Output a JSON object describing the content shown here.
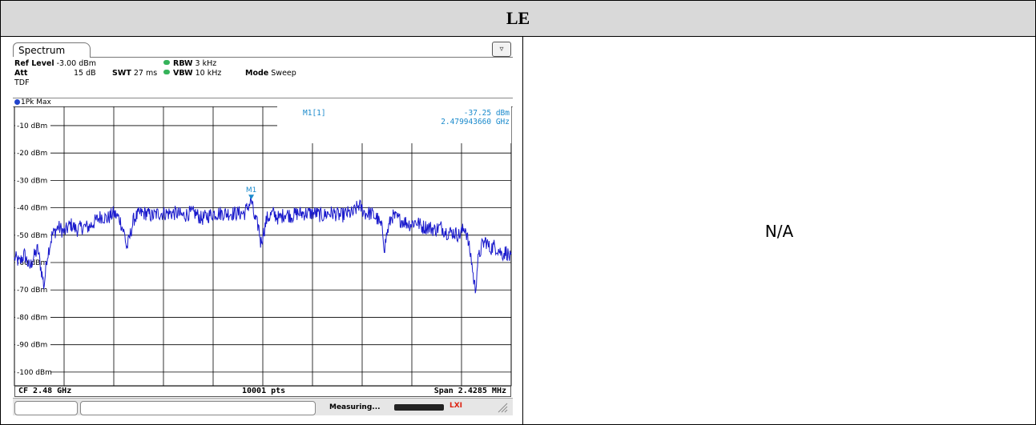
{
  "header": {
    "title": "LE"
  },
  "right_cell": {
    "text": "N/A"
  },
  "analyzer": {
    "tab_label": "Spectrum",
    "ref_level_label": "Ref Level",
    "ref_level_value": "-3.00 dBm",
    "att_label": "Att",
    "att_value": "15 dB",
    "swt_label": "SWT",
    "swt_value": "27 ms",
    "rbw_label": "RBW",
    "rbw_value": "3 kHz",
    "vbw_label": "VBW",
    "vbw_value": "10 kHz",
    "mode_label": "Mode",
    "mode_value": "Sweep",
    "tdf_label": "TDF",
    "trace_label": "1Pk Max",
    "marker_name": "M1",
    "marker_readout_label": "M1[1]",
    "marker_level": "-37.25 dBm",
    "marker_freq": "2.479943660 GHz",
    "cf_label": "CF 2.48 GHz",
    "pts_label": "10001 pts",
    "span_label": "Span 2.4285 MHz",
    "status_text": "Measuring...",
    "lxi_label": "LXI"
  },
  "colors": {
    "trace": "#1a1acc",
    "marker": "#1a8acc",
    "grid": "#000000"
  },
  "chart_data": {
    "type": "line",
    "title": "",
    "xlabel": "",
    "ylabel": "",
    "x_range_mhz": [
      2478.78575,
      2481.21425
    ],
    "ylim": [
      -105,
      -3
    ],
    "yticks": [
      -10,
      -20,
      -30,
      -40,
      -50,
      -60,
      -70,
      -80,
      -90,
      -100
    ],
    "ytick_labels": [
      "-10 dBm",
      "-20 dBm",
      "-30 dBm",
      "-40 dBm",
      "-50 dBm",
      "-60 dBm",
      "-70 dBm",
      "-80 dBm",
      "-90 dBm",
      "-100 dBm"
    ],
    "x_divisions": 10,
    "grid": true,
    "marker": {
      "name": "M1",
      "x_mhz": 2479.94366,
      "y_dbm": -37.25
    },
    "series": [
      {
        "points": [
          [
            2478.786,
            -58
          ],
          [
            2478.81,
            -60
          ],
          [
            2478.835,
            -57
          ],
          [
            2478.86,
            -62
          ],
          [
            2478.88,
            -58
          ],
          [
            2478.9,
            -55
          ],
          [
            2478.915,
            -62
          ],
          [
            2478.925,
            -66
          ],
          [
            2478.93,
            -69
          ],
          [
            2478.945,
            -58
          ],
          [
            2478.97,
            -50
          ],
          [
            2479.0,
            -47
          ],
          [
            2479.03,
            -49
          ],
          [
            2479.06,
            -46
          ],
          [
            2479.09,
            -48
          ],
          [
            2479.12,
            -47
          ],
          [
            2479.15,
            -47
          ],
          [
            2479.18,
            -45
          ],
          [
            2479.21,
            -43
          ],
          [
            2479.24,
            -44
          ],
          [
            2479.27,
            -42
          ],
          [
            2479.3,
            -44
          ],
          [
            2479.325,
            -50
          ],
          [
            2479.335,
            -55
          ],
          [
            2479.345,
            -52
          ],
          [
            2479.37,
            -44
          ],
          [
            2479.4,
            -42
          ],
          [
            2479.43,
            -42
          ],
          [
            2479.46,
            -43
          ],
          [
            2479.49,
            -42
          ],
          [
            2479.52,
            -42
          ],
          [
            2479.55,
            -42
          ],
          [
            2479.58,
            -42
          ],
          [
            2479.61,
            -43
          ],
          [
            2479.64,
            -42
          ],
          [
            2479.67,
            -42
          ],
          [
            2479.7,
            -44
          ],
          [
            2479.73,
            -43
          ],
          [
            2479.76,
            -42
          ],
          [
            2479.79,
            -42
          ],
          [
            2479.82,
            -42
          ],
          [
            2479.85,
            -42
          ],
          [
            2479.88,
            -42
          ],
          [
            2479.91,
            -42
          ],
          [
            2479.94366,
            -37.25
          ],
          [
            2479.96,
            -44
          ],
          [
            2479.98,
            -47
          ],
          [
            2479.99,
            -53
          ],
          [
            2480.0,
            -50
          ],
          [
            2480.02,
            -44
          ],
          [
            2480.05,
            -42
          ],
          [
            2480.08,
            -44
          ],
          [
            2480.11,
            -42
          ],
          [
            2480.14,
            -43
          ],
          [
            2480.17,
            -42
          ],
          [
            2480.2,
            -42
          ],
          [
            2480.23,
            -42
          ],
          [
            2480.26,
            -42
          ],
          [
            2480.29,
            -43
          ],
          [
            2480.32,
            -42
          ],
          [
            2480.35,
            -42
          ],
          [
            2480.38,
            -43
          ],
          [
            2480.41,
            -42
          ],
          [
            2480.44,
            -42
          ],
          [
            2480.47,
            -39
          ],
          [
            2480.5,
            -42
          ],
          [
            2480.53,
            -42
          ],
          [
            2480.56,
            -44
          ],
          [
            2480.585,
            -48
          ],
          [
            2480.595,
            -55
          ],
          [
            2480.605,
            -50
          ],
          [
            2480.63,
            -43
          ],
          [
            2480.66,
            -44
          ],
          [
            2480.69,
            -45
          ],
          [
            2480.72,
            -46
          ],
          [
            2480.75,
            -45
          ],
          [
            2480.78,
            -47
          ],
          [
            2480.81,
            -47
          ],
          [
            2480.84,
            -48
          ],
          [
            2480.87,
            -47
          ],
          [
            2480.9,
            -49
          ],
          [
            2480.93,
            -49
          ],
          [
            2480.96,
            -50
          ],
          [
            2480.99,
            -47
          ],
          [
            2481.0,
            -51
          ],
          [
            2481.02,
            -59
          ],
          [
            2481.03,
            -66
          ],
          [
            2481.04,
            -70
          ],
          [
            2481.05,
            -60
          ],
          [
            2481.07,
            -54
          ],
          [
            2481.09,
            -52
          ],
          [
            2481.11,
            -55
          ],
          [
            2481.13,
            -54
          ],
          [
            2481.15,
            -55
          ],
          [
            2481.17,
            -57
          ],
          [
            2481.19,
            -56
          ],
          [
            2481.214,
            -59
          ]
        ]
      }
    ]
  }
}
